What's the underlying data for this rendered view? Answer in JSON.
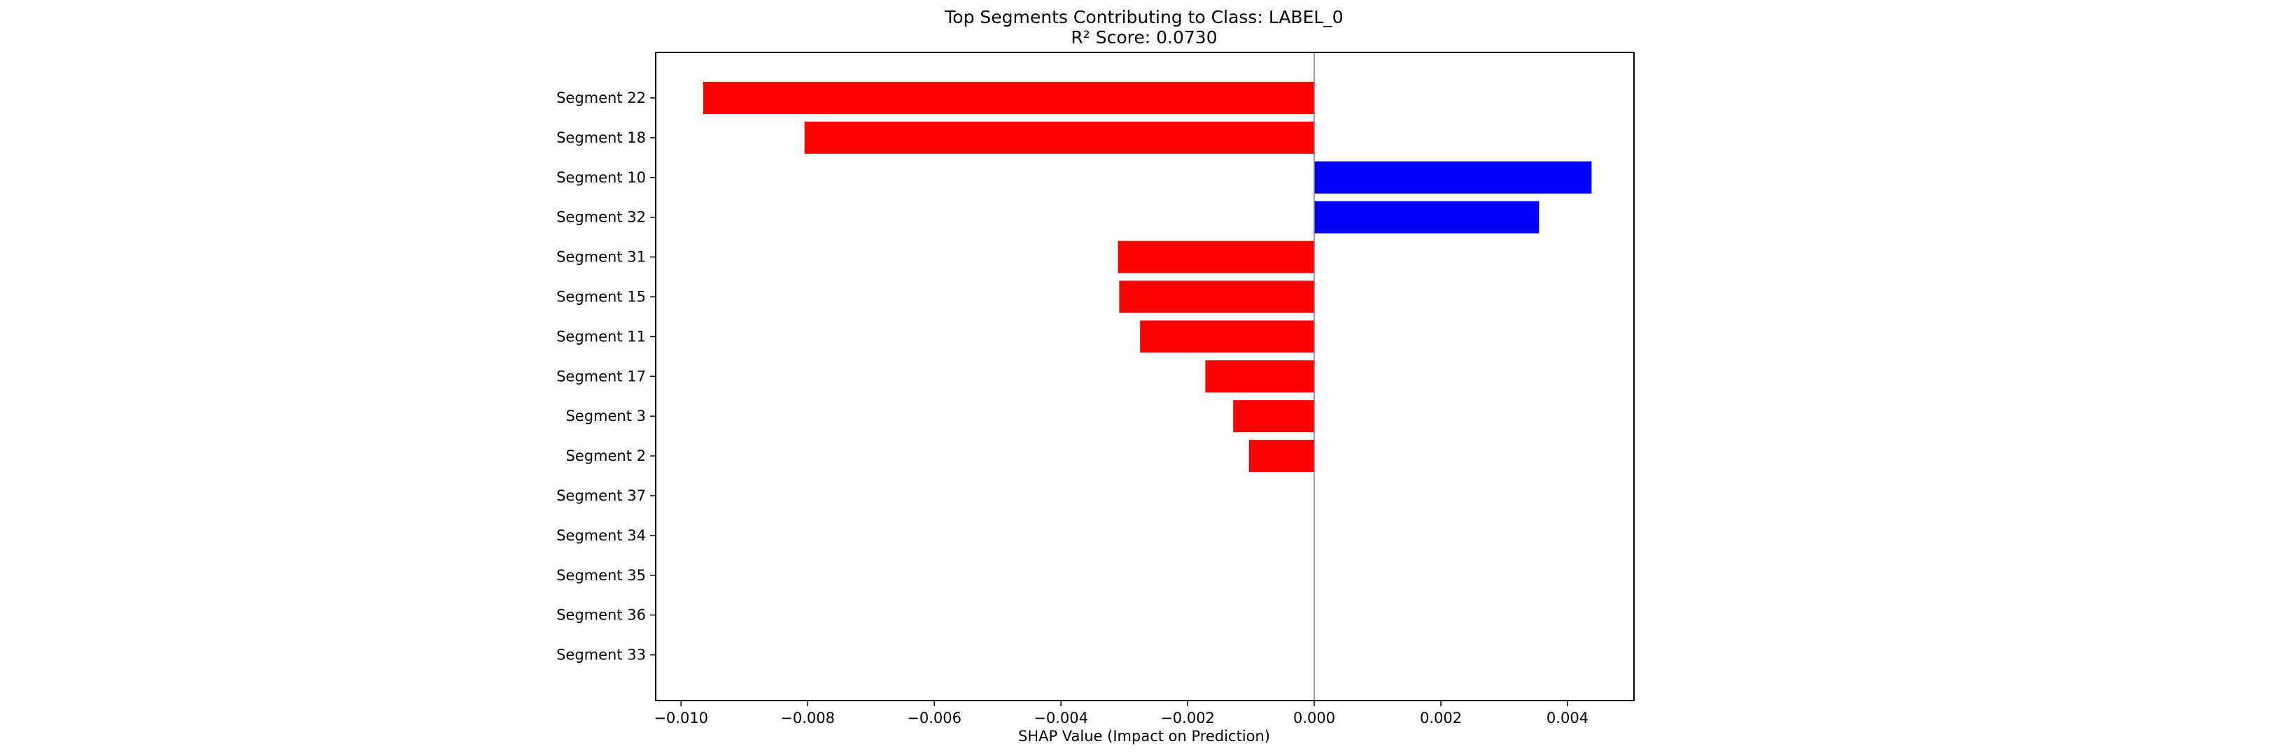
{
  "chart_data": {
    "type": "bar",
    "orientation": "horizontal",
    "title": "Top Segments Contributing to Class: LABEL_0",
    "subtitle": "R² Score: 0.0730",
    "xlabel": "SHAP Value (Impact on Prediction)",
    "ylabel": "",
    "xlim": [
      -0.0104,
      0.00505
    ],
    "xticks": [
      -0.01,
      -0.008,
      -0.006,
      -0.004,
      -0.002,
      0.0,
      0.002,
      0.004
    ],
    "xtick_labels": [
      "−0.010",
      "−0.008",
      "−0.006",
      "−0.004",
      "−0.002",
      "0.000",
      "0.002",
      "0.004"
    ],
    "categories": [
      "Segment 22",
      "Segment 18",
      "Segment 10",
      "Segment 32",
      "Segment 31",
      "Segment 15",
      "Segment 11",
      "Segment 17",
      "Segment 3",
      "Segment 2",
      "Segment 37",
      "Segment 34",
      "Segment 35",
      "Segment 36",
      "Segment 33"
    ],
    "values": [
      -0.00965,
      -0.00805,
      0.00438,
      0.00355,
      -0.0031,
      -0.00308,
      -0.00275,
      -0.00172,
      -0.00128,
      -0.00103,
      0.0,
      0.0,
      0.0,
      0.0,
      0.0
    ],
    "colors": {
      "positive": "#0000ff",
      "negative": "#ff0000",
      "zero_line": "#808080"
    },
    "grid": false,
    "legend": "none"
  }
}
